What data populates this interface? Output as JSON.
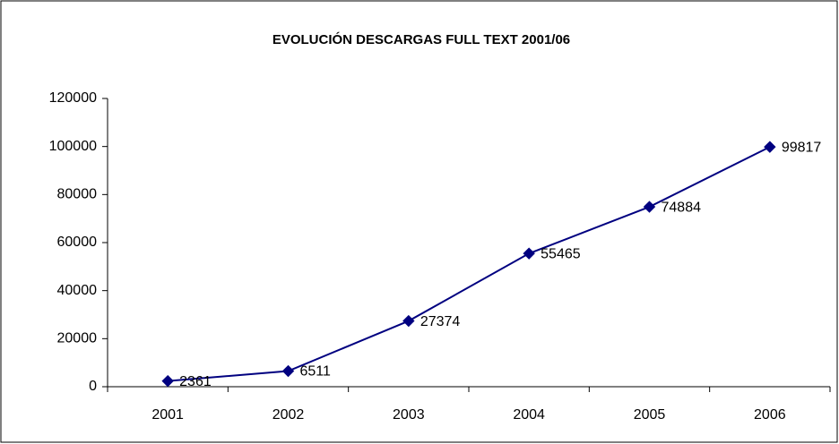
{
  "chart_data": {
    "type": "line",
    "title": "EVOLUCIÓN DESCARGAS FULL TEXT 2001/06",
    "categories": [
      "2001",
      "2002",
      "2003",
      "2004",
      "2005",
      "2006"
    ],
    "values": [
      2361,
      6511,
      27374,
      55465,
      74884,
      99817
    ],
    "color": "#000080",
    "ylim": [
      0,
      120000
    ],
    "yticks": [
      0,
      20000,
      40000,
      60000,
      80000,
      100000,
      120000
    ],
    "grid": false,
    "data_labels": true
  }
}
